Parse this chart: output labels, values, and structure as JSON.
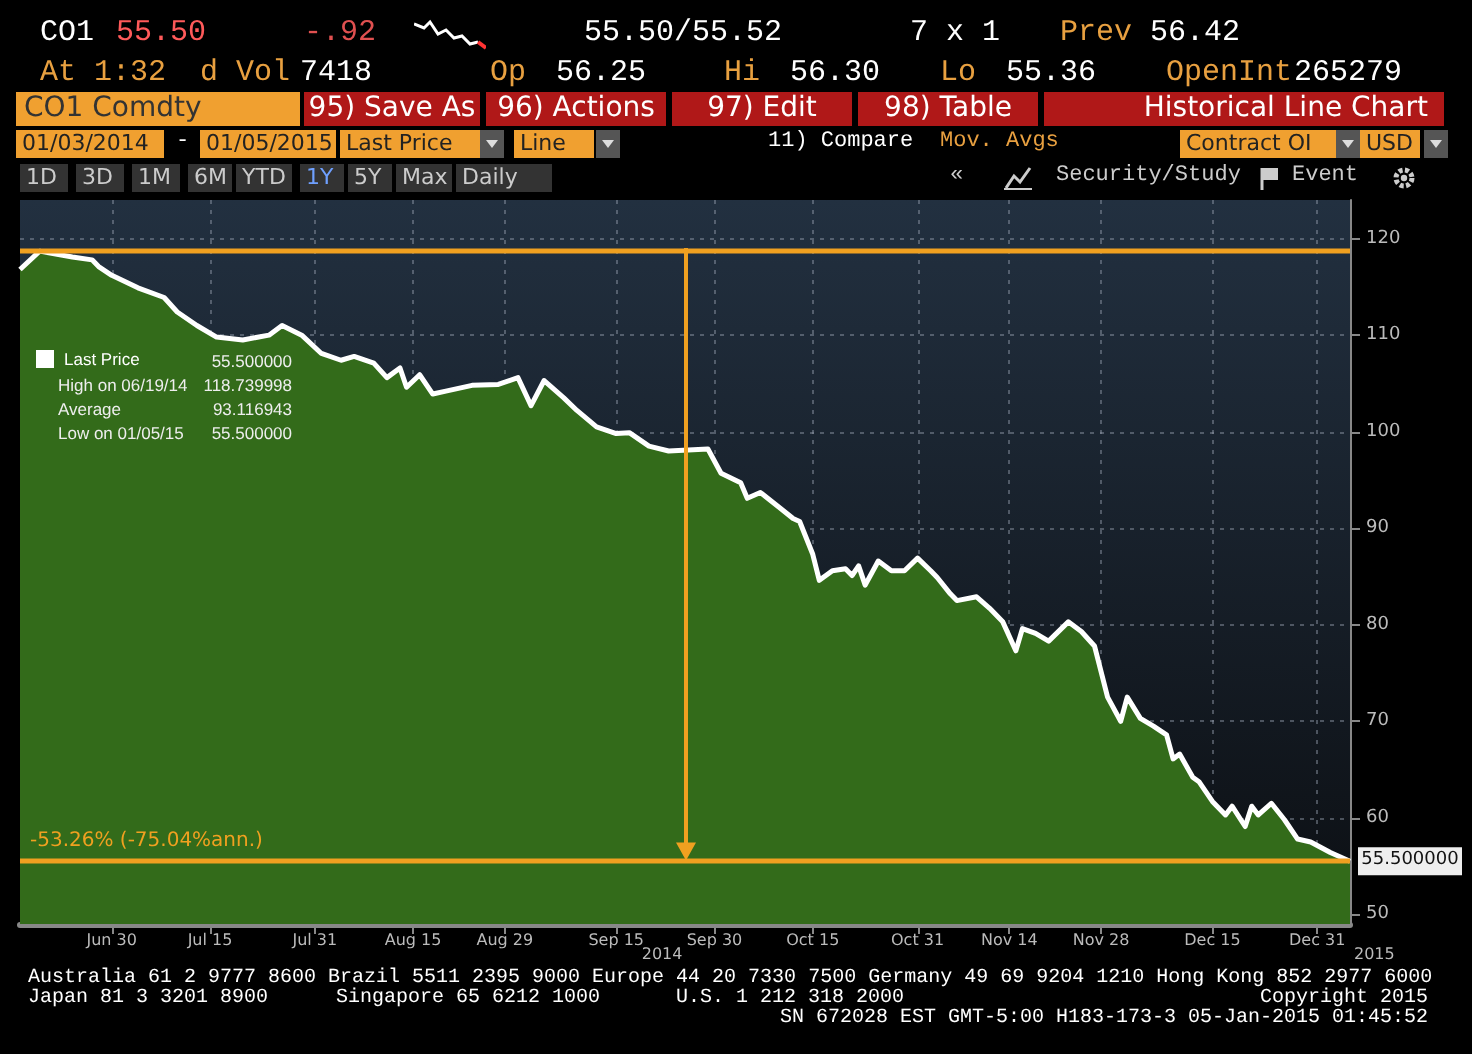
{
  "chart_data": {
    "type": "area",
    "title": "CO1 Comdty",
    "subtitle": "Historical Line Chart",
    "x": [
      "2014-06-16",
      "2014-06-19",
      "2014-06-24",
      "2014-06-27",
      "2014-06-28",
      "2014-06-30",
      "2014-07-04",
      "2014-07-08",
      "2014-07-10",
      "2014-07-13",
      "2014-07-16",
      "2014-07-20",
      "2014-07-24",
      "2014-07-26",
      "2014-07-29",
      "2014-08-01",
      "2014-08-04",
      "2014-08-06",
      "2014-08-09",
      "2014-08-11",
      "2014-08-13",
      "2014-08-14",
      "2014-08-16",
      "2014-08-18",
      "2014-08-20",
      "2014-08-24",
      "2014-08-28",
      "2014-08-31",
      "2014-09-02",
      "2014-09-04",
      "2014-09-07",
      "2014-09-09",
      "2014-09-12",
      "2014-09-15",
      "2014-09-17",
      "2014-09-20",
      "2014-09-23",
      "2014-09-29",
      "2014-10-01",
      "2014-10-04",
      "2014-10-05",
      "2014-10-07",
      "2014-10-10",
      "2014-10-12",
      "2014-10-13",
      "2014-10-15",
      "2014-10-16",
      "2014-10-18",
      "2014-10-20",
      "2014-10-21",
      "2014-10-22",
      "2014-10-23",
      "2014-10-25",
      "2014-10-27",
      "2014-10-29",
      "2014-10-31",
      "2014-11-02",
      "2014-11-03",
      "2014-11-05",
      "2014-11-06",
      "2014-11-09",
      "2014-11-11",
      "2014-11-13",
      "2014-11-15",
      "2014-11-16",
      "2014-11-18",
      "2014-11-20",
      "2014-11-23",
      "2014-11-25",
      "2014-11-27",
      "2014-11-29",
      "2014-12-01",
      "2014-12-02",
      "2014-12-04",
      "2014-12-06",
      "2014-12-08",
      "2014-12-09",
      "2014-12-10",
      "2014-12-12",
      "2014-12-13",
      "2014-12-15",
      "2014-12-17",
      "2014-12-18",
      "2014-12-20",
      "2014-12-21",
      "2014-12-22",
      "2014-12-24",
      "2014-12-26",
      "2014-12-28",
      "2014-12-30",
      "2015-01-02",
      "2015-01-05"
    ],
    "series": [
      {
        "name": "Last Price",
        "color": "#336b1a",
        "values": [
          116.8,
          118.7,
          118.1,
          117.8,
          117.1,
          116.2,
          114.9,
          113.9,
          112.4,
          111.0,
          109.8,
          109.5,
          110.0,
          111.0,
          110.0,
          108.1,
          107.4,
          107.8,
          107.1,
          105.6,
          106.6,
          104.6,
          105.9,
          103.9,
          104.2,
          104.8,
          104.9,
          105.6,
          102.7,
          105.3,
          103.5,
          102.2,
          100.5,
          99.8,
          99.9,
          98.5,
          98.0,
          98.2,
          95.7,
          94.7,
          93.1,
          93.7,
          92.1,
          91.0,
          90.7,
          87.3,
          84.6,
          85.6,
          85.8,
          85.1,
          86.1,
          84.1,
          86.6,
          85.6,
          85.6,
          86.9,
          85.6,
          84.9,
          83.2,
          82.5,
          82.9,
          81.7,
          80.3,
          77.3,
          79.6,
          79.1,
          78.3,
          80.3,
          79.3,
          77.8,
          72.5,
          70.0,
          72.5,
          70.3,
          69.5,
          68.6,
          66.1,
          66.6,
          64.2,
          63.7,
          61.7,
          60.3,
          61.2,
          59.1,
          61.2,
          60.3,
          61.5,
          59.8,
          57.8,
          57.5,
          56.4,
          55.5
        ]
      }
    ],
    "xlim": [
      "2014-06-16",
      "2015-01-05"
    ],
    "xticks": [
      {
        "value": "2014-06-30",
        "label": "Jun 30"
      },
      {
        "value": "2014-07-15",
        "label": "Jul 15"
      },
      {
        "value": "2014-07-31",
        "label": "Jul 31"
      },
      {
        "value": "2014-08-15",
        "label": "Aug 15"
      },
      {
        "value": "2014-08-29",
        "label": "Aug 29"
      },
      {
        "value": "2014-09-15",
        "label": "Sep 15"
      },
      {
        "value": "2014-09-30",
        "label": "Sep 30"
      },
      {
        "value": "2014-10-15",
        "label": "Oct 15"
      },
      {
        "value": "2014-10-31",
        "label": "Oct 31"
      },
      {
        "value": "2014-11-14",
        "label": "Nov 14"
      },
      {
        "value": "2014-11-28",
        "label": "Nov 28"
      },
      {
        "value": "2014-12-15",
        "label": "Dec 15"
      },
      {
        "value": "2014-12-31",
        "label": "Dec 31"
      }
    ],
    "ylim": [
      49,
      124
    ],
    "yticks": [
      50,
      60,
      70,
      80,
      90,
      100,
      110,
      120
    ],
    "grid": true,
    "legend": "top left",
    "ref_lines": [
      {
        "axis": "y",
        "value": 118.74,
        "color": "#f0a020"
      },
      {
        "axis": "y",
        "value": 55.5,
        "color": "#f0a020",
        "label": "-53.26% (-75.04%ann.)"
      }
    ],
    "annotations": [
      "CO1",
      "55.50",
      "-.92",
      "55.50/55.52",
      "7 x 1",
      "Prev",
      "56.42",
      "At 1:32",
      "d Vol",
      "7418",
      "Op",
      "56.25",
      "Hi",
      "56.30",
      "Lo",
      "55.36",
      "OpenInt",
      "265279",
      "95) Save As",
      "96) Actions",
      "97) Edit",
      "98) Table",
      "01/03/2014",
      "-",
      "01/05/2015",
      "Last Price",
      "Line",
      "11) Compare",
      "Mov. Avgs",
      "Contract OI",
      "USD",
      "1D",
      "3D",
      "1M",
      "6M",
      "YTD",
      "1Y",
      "5Y",
      "Max",
      "Daily",
      "«",
      "Security/Study",
      "Event",
      "55.500000",
      "High on 06/19/14",
      "118.739998",
      "Average",
      "93.116943",
      "Low on 01/05/15",
      "55.500000",
      "2014",
      "2015",
      "Australia 61 2 9777 8600 Brazil 5511 2395 9000 Europe 44 20 7330 7500 Germany 49 69 9204 1210 Hong Kong 852 2977 6000",
      "Japan 81 3 3201 8900",
      "Singapore 65 6212 1000",
      "U.S. 1 212 318 2000",
      "Copyright 2015",
      "SN 672028 EST  GMT-5:00 H183-173-3 05-Jan-2015 01:45:52",
      {
        "text": "55.500000",
        "x": "2015-01-05",
        "y": 55.5
      }
    ]
  }
}
